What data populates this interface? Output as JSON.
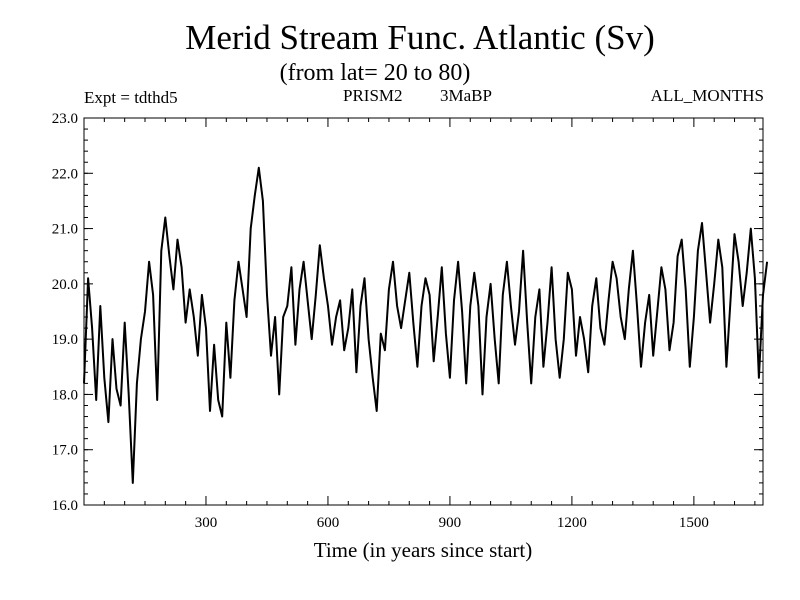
{
  "header": {
    "expt_label": "Expt = tdthd5",
    "model_label": "PRISM2",
    "period_label": "3MaBP",
    "months_label": "ALL_MONTHS"
  },
  "chart_data": {
    "type": "line",
    "title": "Merid Stream Func. Atlantic (Sv)",
    "subtitle": "(from lat= 20 to 80)",
    "xlabel": "Time (in years since start)",
    "ylabel": "",
    "xlim": [
      0,
      1670
    ],
    "ylim": [
      16.0,
      23.0
    ],
    "xticks": [
      300,
      600,
      900,
      1200,
      1500
    ],
    "xtick_labels": [
      "300",
      "600",
      "900",
      "1200",
      "1500"
    ],
    "yticks": [
      16,
      17,
      18,
      19,
      20,
      21,
      22,
      23
    ],
    "ytick_labels": [
      "16.0",
      "17.0",
      "18.0",
      "19.0",
      "20.0",
      "21.0",
      "22.0",
      "23.0"
    ],
    "line_color": "#000000",
    "series": [
      {
        "name": "Merid Stream Func. Atlantic",
        "x_step": 10,
        "x_start": 0,
        "values": [
          18.2,
          20.1,
          19.2,
          17.9,
          19.6,
          18.3,
          17.5,
          19.0,
          18.1,
          17.8,
          19.3,
          18.0,
          16.4,
          18.2,
          19.0,
          19.5,
          20.4,
          19.8,
          17.9,
          20.6,
          21.2,
          20.5,
          19.9,
          20.8,
          20.3,
          19.3,
          19.9,
          19.4,
          18.7,
          19.8,
          19.2,
          17.7,
          18.9,
          17.9,
          17.6,
          19.3,
          18.3,
          19.7,
          20.4,
          19.9,
          19.4,
          21.0,
          21.6,
          22.1,
          21.5,
          19.8,
          18.7,
          19.4,
          18.0,
          19.4,
          19.6,
          20.3,
          18.9,
          19.9,
          20.4,
          19.7,
          19.0,
          19.8,
          20.7,
          20.1,
          19.6,
          18.9,
          19.4,
          19.7,
          18.8,
          19.2,
          19.9,
          18.4,
          19.6,
          20.1,
          19.0,
          18.3,
          17.7,
          19.1,
          18.8,
          19.9,
          20.4,
          19.6,
          19.2,
          19.7,
          20.2,
          19.3,
          18.5,
          19.6,
          20.1,
          19.8,
          18.6,
          19.4,
          20.3,
          19.1,
          18.3,
          19.7,
          20.4,
          19.5,
          18.2,
          19.6,
          20.2,
          19.6,
          18.0,
          19.4,
          20.0,
          19.0,
          18.2,
          19.8,
          20.4,
          19.6,
          18.9,
          19.5,
          20.6,
          19.3,
          18.2,
          19.4,
          19.9,
          18.5,
          19.3,
          20.3,
          19.0,
          18.3,
          19.0,
          20.2,
          19.9,
          18.7,
          19.4,
          19.0,
          18.4,
          19.6,
          20.1,
          19.2,
          18.9,
          19.7,
          20.4,
          20.1,
          19.4,
          19.0,
          19.9,
          20.6,
          19.6,
          18.5,
          19.3,
          19.8,
          18.7,
          19.5,
          20.3,
          19.9,
          18.8,
          19.3,
          20.5,
          20.8,
          19.9,
          18.5,
          19.4,
          20.6,
          21.1,
          20.2,
          19.3,
          20.0,
          20.8,
          20.3,
          18.5,
          19.7,
          20.9,
          20.4,
          19.6,
          20.2,
          21.0,
          20.1,
          18.3,
          19.8,
          20.4
        ]
      }
    ]
  }
}
